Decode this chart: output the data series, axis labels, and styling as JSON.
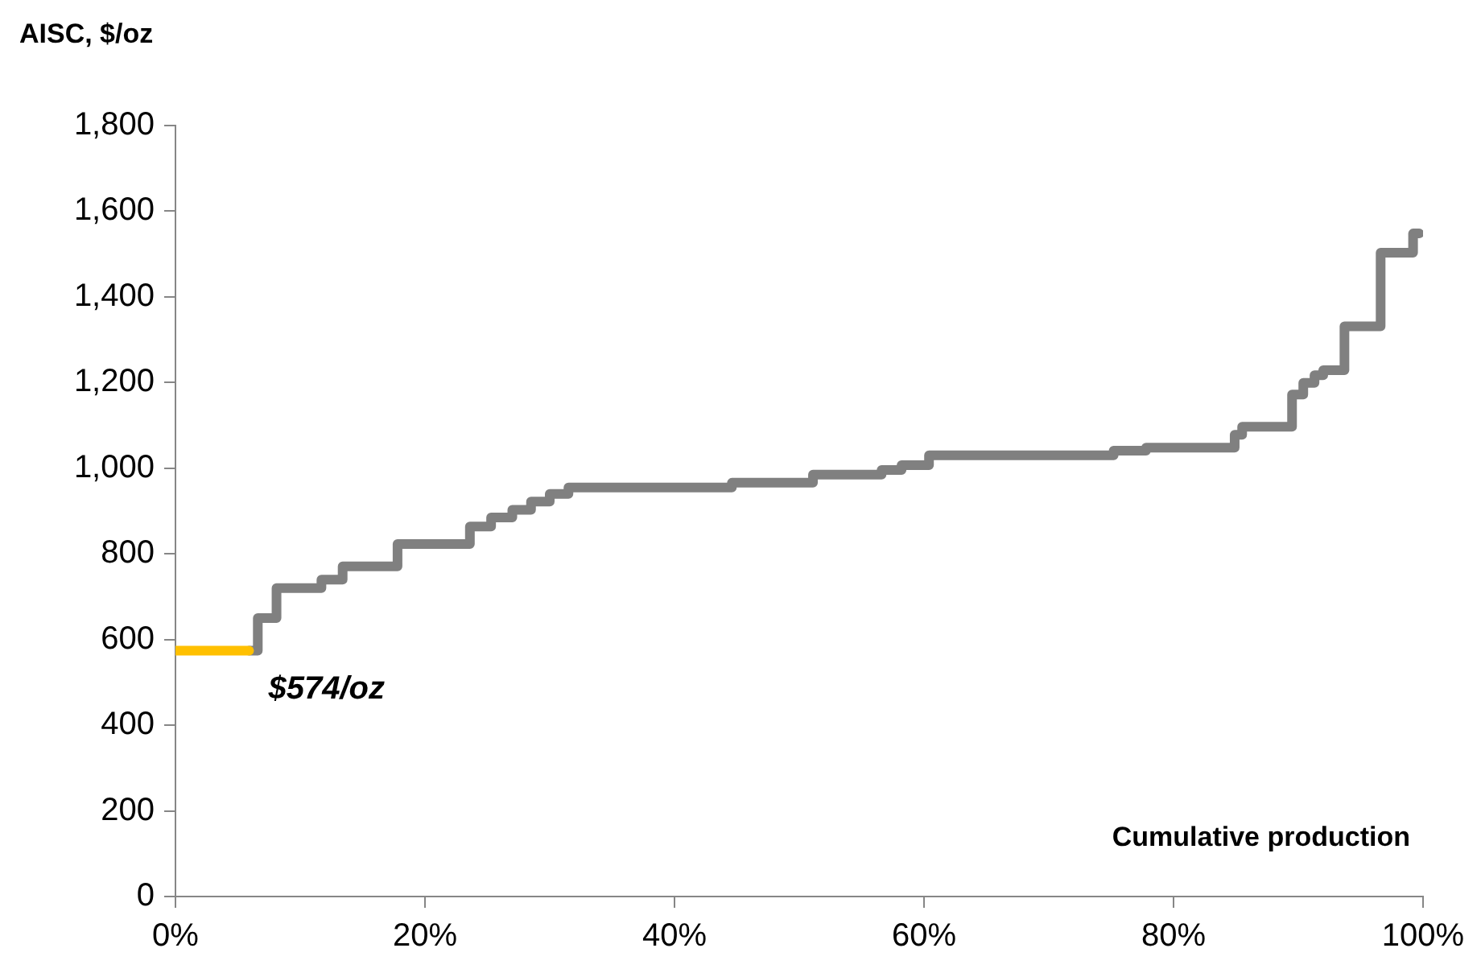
{
  "chart_data": {
    "type": "step",
    "ylabel": "AISC, $/oz",
    "xlabel": "Cumulative production",
    "series": [
      {
        "color": "#ffc000",
        "x": [
          0,
          5.9
        ],
        "values": [
          574,
          574
        ]
      },
      {
        "color": "#808080",
        "x": [
          5.9,
          6.6,
          8.1,
          11.7,
          13.4,
          17.8,
          23.6,
          25.3,
          27,
          28.5,
          30,
          31.5,
          44.6,
          47.8,
          51.1,
          56.6,
          58.2,
          60.4,
          75.2,
          77.8,
          84.9,
          85.5,
          89.5,
          90.4,
          91.3,
          92,
          93.7,
          96.6,
          99.2,
          99.7
        ],
        "values": [
          574,
          650,
          720,
          740,
          771,
          823,
          864,
          885,
          903,
          922,
          940,
          955,
          966,
          966,
          985,
          996,
          1007,
          1030,
          1041,
          1048,
          1078,
          1097,
          1172,
          1199,
          1217,
          1229,
          1331,
          1503,
          1548,
          1548
        ]
      }
    ],
    "annotations": [
      {
        "text": "$574/oz",
        "x": 5.9,
        "y": 574
      }
    ],
    "xlim": [
      0,
      100
    ],
    "xticks": [
      {
        "value": 0,
        "label": "0%"
      },
      {
        "value": 20,
        "label": "20%"
      },
      {
        "value": 40,
        "label": "40%"
      },
      {
        "value": 60,
        "label": "60%"
      },
      {
        "value": 80,
        "label": "80%"
      },
      {
        "value": 100,
        "label": "100%"
      }
    ],
    "ylim": [
      0,
      1800
    ],
    "yticks": [
      0,
      200,
      400,
      600,
      800,
      {
        "value": 1000,
        "label": "1,000"
      },
      {
        "value": 1200,
        "label": "1,200"
      },
      {
        "value": 1400,
        "label": "1,400"
      },
      {
        "value": 1600,
        "label": "1,600"
      },
      {
        "value": 1800,
        "label": "1,800"
      }
    ],
    "grid": false,
    "legend": false,
    "marker": "none",
    "line_style": "solid"
  }
}
